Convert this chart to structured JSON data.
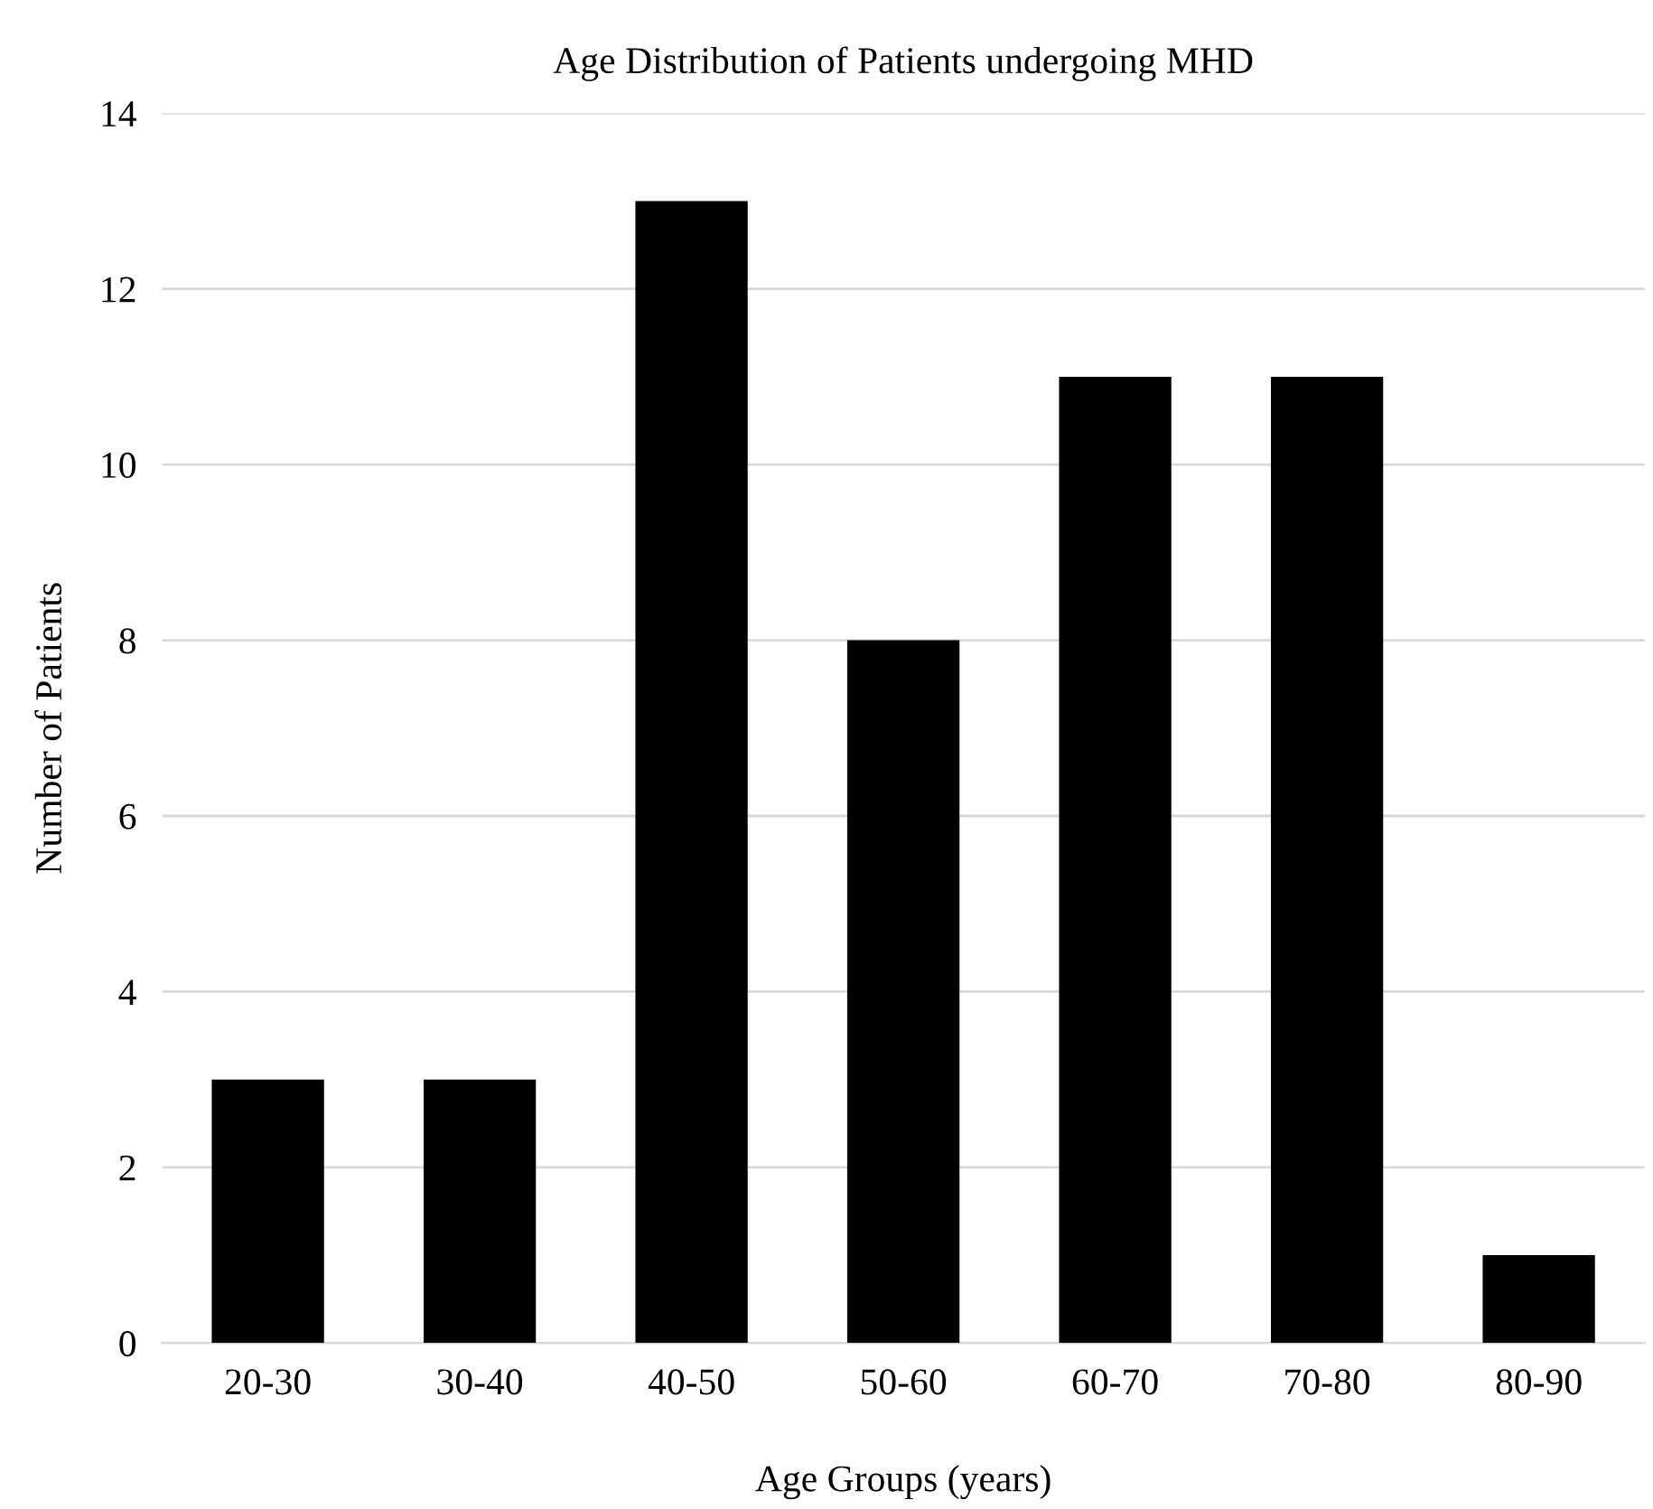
{
  "chart_data": {
    "type": "bar",
    "title": "Age Distribution of Patients undergoing MHD",
    "xlabel": "Age Groups (years)",
    "ylabel": "Number of Patients",
    "categories": [
      "20-30",
      "30-40",
      "40-50",
      "50-60",
      "60-70",
      "70-80",
      "80-90"
    ],
    "values": [
      3,
      3,
      13,
      8,
      11,
      11,
      1
    ],
    "color": "#000000",
    "ylim": [
      0,
      14
    ],
    "yticks": [
      0,
      2,
      4,
      6,
      8,
      10,
      12,
      14
    ],
    "grid": "y",
    "legend": false
  }
}
